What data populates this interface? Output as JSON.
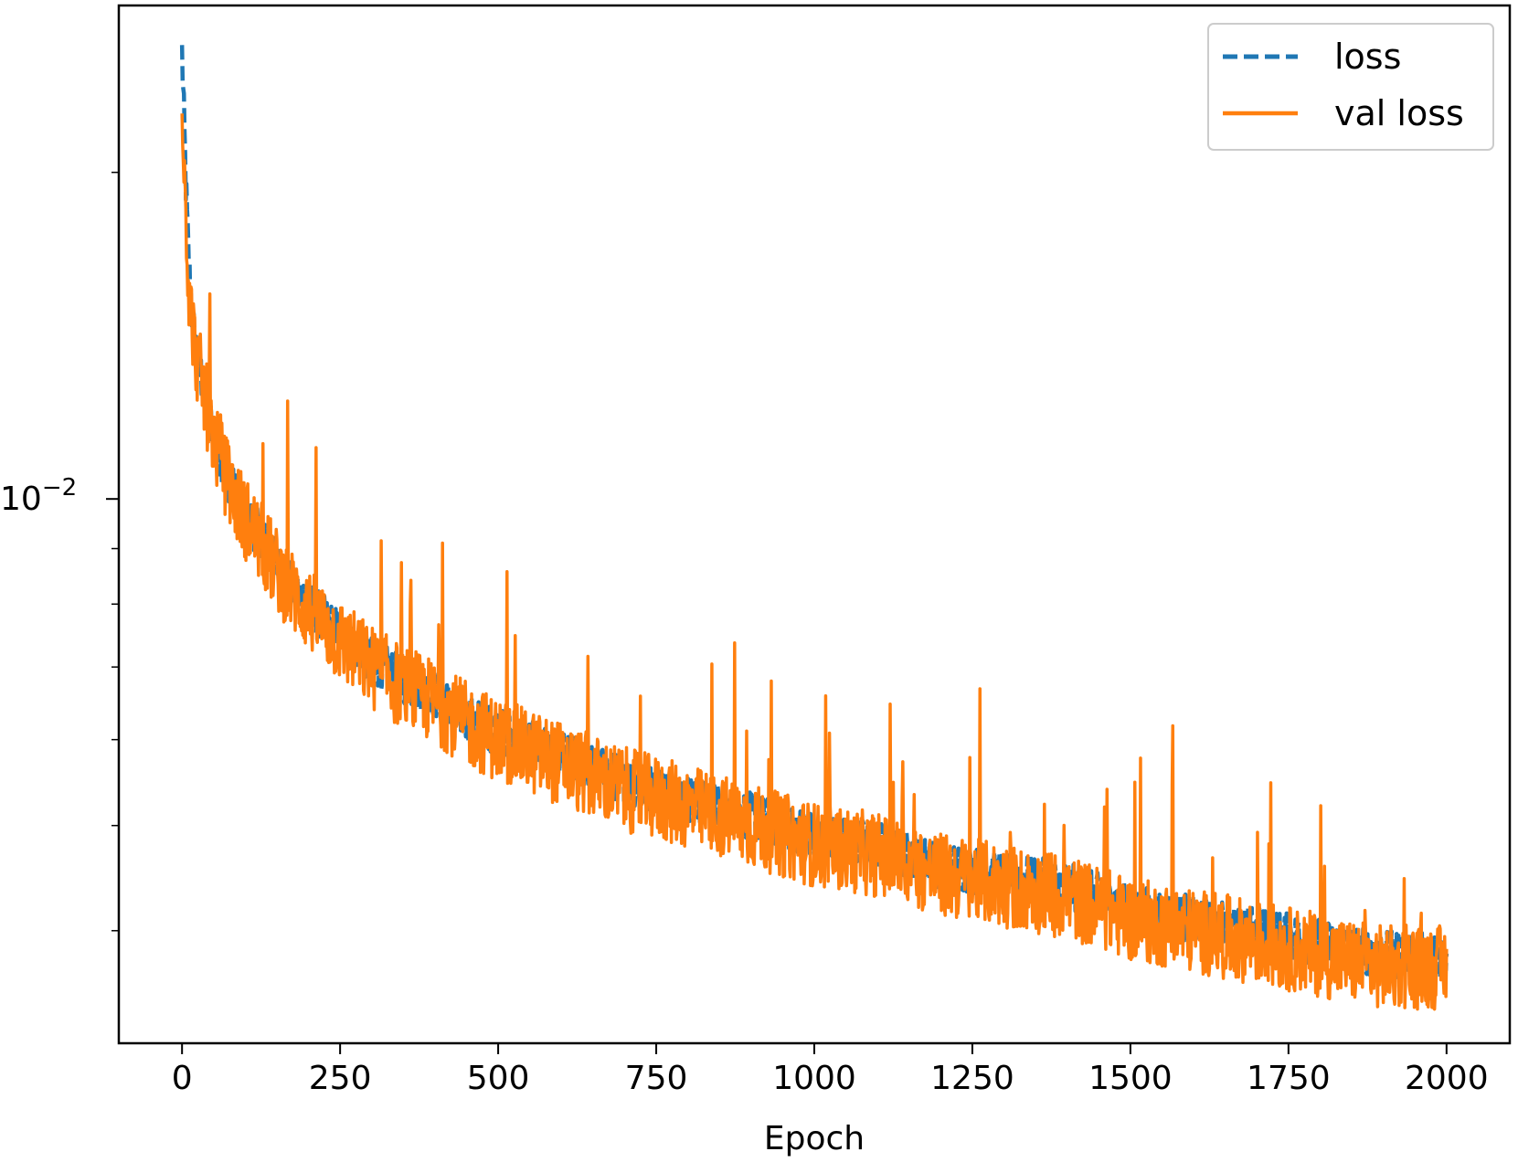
{
  "chart_data": {
    "type": "line",
    "title": "",
    "xlabel": "Epoch",
    "ylabel": "",
    "xlim": [
      -100,
      2100
    ],
    "ylim": [
      0.00315,
      0.0285
    ],
    "yscale": "log",
    "grid": false,
    "legend_position": "top-right",
    "x_ticks": [
      0,
      250,
      500,
      750,
      1000,
      1250,
      1500,
      1750,
      2000
    ],
    "x_tick_labels": [
      "0",
      "250",
      "500",
      "750",
      "1000",
      "1250",
      "1500",
      "1750",
      "2000"
    ],
    "y_major_ticks": [
      0.01
    ],
    "y_major_tick_labels": [
      "10",
      "−2"
    ],
    "y_minor_ticks": [
      0.004,
      0.005,
      0.006,
      0.007,
      0.008,
      0.009,
      0.02
    ],
    "series": [
      {
        "name": "loss",
        "color": "#1f77b4",
        "style": "dashed",
        "x": [
          0,
          3,
          6,
          10,
          15,
          20,
          30,
          40,
          50,
          60,
          80,
          100,
          125,
          150,
          175,
          200,
          250,
          300,
          350,
          400,
          450,
          500,
          600,
          700,
          800,
          900,
          1000,
          1100,
          1200,
          1300,
          1400,
          1500,
          1600,
          1700,
          1800,
          1900,
          2000
        ],
        "y": [
          0.0258,
          0.0225,
          0.0195,
          0.0168,
          0.015,
          0.014,
          0.013,
          0.0122,
          0.0115,
          0.011,
          0.0102,
          0.0097,
          0.0092,
          0.0087,
          0.0083,
          0.008,
          0.0075,
          0.0071,
          0.0068,
          0.0066,
          0.0063,
          0.0061,
          0.0058,
          0.0055,
          0.0053,
          0.0051,
          0.0049,
          0.0048,
          0.0046,
          0.0045,
          0.0044,
          0.0042,
          0.0041,
          0.004,
          0.0039,
          0.0038,
          0.0038
        ]
      },
      {
        "name": "val loss",
        "color": "#ff7f0e",
        "style": "solid",
        "x": [
          0,
          3,
          6,
          10,
          15,
          20,
          30,
          40,
          50,
          60,
          80,
          100,
          125,
          150,
          175,
          200,
          250,
          300,
          350,
          400,
          450,
          500,
          600,
          700,
          800,
          900,
          1000,
          1100,
          1200,
          1300,
          1400,
          1500,
          1600,
          1700,
          1800,
          1900,
          2000
        ],
        "y": [
          0.0238,
          0.021,
          0.0185,
          0.016,
          0.0147,
          0.0138,
          0.0129,
          0.0121,
          0.0114,
          0.0109,
          0.0101,
          0.0096,
          0.0091,
          0.0086,
          0.0082,
          0.0079,
          0.0074,
          0.007,
          0.0067,
          0.0065,
          0.0062,
          0.006,
          0.0057,
          0.0054,
          0.0052,
          0.005,
          0.0048,
          0.0047,
          0.0045,
          0.0044,
          0.0043,
          0.0041,
          0.004,
          0.0039,
          0.0038,
          0.0037,
          0.0037
        ]
      }
    ]
  }
}
